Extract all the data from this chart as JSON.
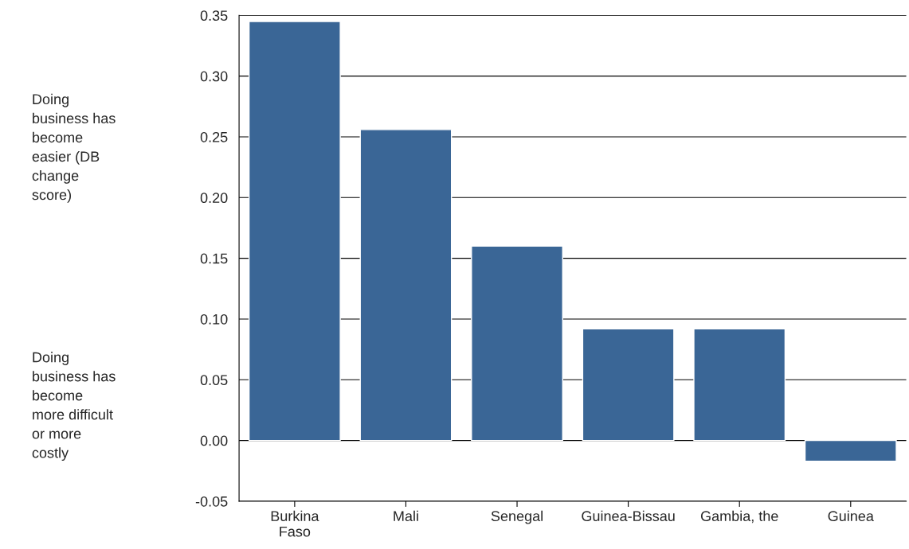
{
  "chart_data": {
    "type": "bar",
    "categories": [
      "Burkina\nFaso",
      "Mali",
      "Senegal",
      "Guinea-Bissau",
      "Gambia, the",
      "Guinea"
    ],
    "values": [
      0.345,
      0.256,
      0.16,
      0.092,
      0.092,
      -0.017
    ],
    "color": "#3a6696",
    "ylim": [
      -0.05,
      0.35
    ],
    "yticks": [
      {
        "value": -0.05,
        "label": "-0.05"
      },
      {
        "value": 0,
        "label": "0.00"
      },
      {
        "value": 0.05,
        "label": "0.05"
      },
      {
        "value": 0.1,
        "label": "0.10"
      },
      {
        "value": 0.15,
        "label": "0.15"
      },
      {
        "value": 0.2,
        "label": "0.20"
      },
      {
        "value": 0.25,
        "label": "0.25"
      },
      {
        "value": 0.3,
        "label": "0.30"
      },
      {
        "value": 0.35,
        "label": "0.35"
      }
    ],
    "grid": "y",
    "annotations": [
      "Doing\nbusiness has\nbecome\neasier (DB\nchange\nscore)",
      "Doing\nbusiness has\nbecome\nmore difficult\nor more\ncostly"
    ]
  }
}
